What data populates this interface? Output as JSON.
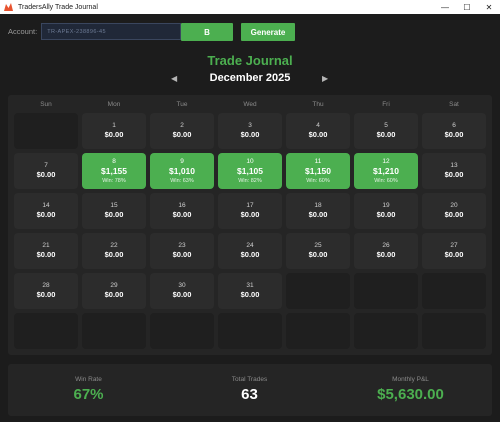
{
  "window": {
    "title": "TradersAlly Trade Journal",
    "controls": {
      "minimize": "—",
      "maximize": "☐",
      "close": "✕"
    }
  },
  "account": {
    "label": "Account:",
    "value": "TR-APEX-238896-45"
  },
  "buttons": {
    "b_label": "B",
    "generate_label": "Generate"
  },
  "header": {
    "title": "Trade Journal",
    "month": "December 2025",
    "prev_icon": "◀",
    "next_icon": "▶"
  },
  "weekdays": [
    "Sun",
    "Mon",
    "Tue",
    "Wed",
    "Thu",
    "Fri",
    "Sat"
  ],
  "weeks": [
    [
      {
        "day": "",
        "amount": "",
        "win": ""
      },
      {
        "day": "1",
        "amount": "$0.00",
        "win": ""
      },
      {
        "day": "2",
        "amount": "$0.00",
        "win": ""
      },
      {
        "day": "3",
        "amount": "$0.00",
        "win": ""
      },
      {
        "day": "4",
        "amount": "$0.00",
        "win": ""
      },
      {
        "day": "5",
        "amount": "$0.00",
        "win": ""
      },
      {
        "day": "6",
        "amount": "$0.00",
        "win": ""
      }
    ],
    [
      {
        "day": "7",
        "amount": "$0.00",
        "win": ""
      },
      {
        "day": "8",
        "amount": "$1,155",
        "win": "Win: 78%"
      },
      {
        "day": "9",
        "amount": "$1,010",
        "win": "Win: 63%"
      },
      {
        "day": "10",
        "amount": "$1,105",
        "win": "Win: 82%"
      },
      {
        "day": "11",
        "amount": "$1,150",
        "win": "Win: 60%"
      },
      {
        "day": "12",
        "amount": "$1,210",
        "win": "Win: 60%"
      },
      {
        "day": "13",
        "amount": "$0.00",
        "win": ""
      }
    ],
    [
      {
        "day": "14",
        "amount": "$0.00",
        "win": ""
      },
      {
        "day": "15",
        "amount": "$0.00",
        "win": ""
      },
      {
        "day": "16",
        "amount": "$0.00",
        "win": ""
      },
      {
        "day": "17",
        "amount": "$0.00",
        "win": ""
      },
      {
        "day": "18",
        "amount": "$0.00",
        "win": ""
      },
      {
        "day": "19",
        "amount": "$0.00",
        "win": ""
      },
      {
        "day": "20",
        "amount": "$0.00",
        "win": ""
      }
    ],
    [
      {
        "day": "21",
        "amount": "$0.00",
        "win": ""
      },
      {
        "day": "22",
        "amount": "$0.00",
        "win": ""
      },
      {
        "day": "23",
        "amount": "$0.00",
        "win": ""
      },
      {
        "day": "24",
        "amount": "$0.00",
        "win": ""
      },
      {
        "day": "25",
        "amount": "$0.00",
        "win": ""
      },
      {
        "day": "26",
        "amount": "$0.00",
        "win": ""
      },
      {
        "day": "27",
        "amount": "$0.00",
        "win": ""
      }
    ],
    [
      {
        "day": "28",
        "amount": "$0.00",
        "win": ""
      },
      {
        "day": "29",
        "amount": "$0.00",
        "win": ""
      },
      {
        "day": "30",
        "amount": "$0.00",
        "win": ""
      },
      {
        "day": "31",
        "amount": "$0.00",
        "win": ""
      },
      {
        "day": "",
        "amount": "",
        "win": ""
      },
      {
        "day": "",
        "amount": "",
        "win": ""
      },
      {
        "day": "",
        "amount": "",
        "win": ""
      }
    ],
    [
      {
        "day": "",
        "amount": "",
        "win": ""
      },
      {
        "day": "",
        "amount": "",
        "win": ""
      },
      {
        "day": "",
        "amount": "",
        "win": ""
      },
      {
        "day": "",
        "amount": "",
        "win": ""
      },
      {
        "day": "",
        "amount": "",
        "win": ""
      },
      {
        "day": "",
        "amount": "",
        "win": ""
      },
      {
        "day": "",
        "amount": "",
        "win": ""
      }
    ]
  ],
  "stats": {
    "win_rate_label": "Win Rate",
    "win_rate": "67%",
    "total_trades_label": "Total Trades",
    "total_trades": "63",
    "monthly_pnl_label": "Monthly P&L",
    "monthly_pnl": "$5,630.00"
  },
  "colors": {
    "accent": "#4caf50",
    "background": "#1c1c1c",
    "panel": "#252525",
    "cell": "#2c2c2c"
  }
}
